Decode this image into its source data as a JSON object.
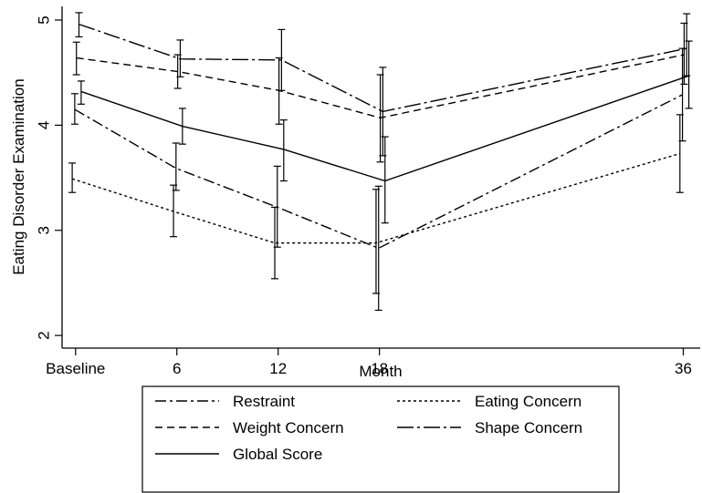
{
  "chart_data": {
    "type": "line",
    "xlabel": "Month",
    "ylabel": "Eating Disorder Examination",
    "x_tick_labels": [
      "Baseline",
      "6",
      "12",
      "18",
      "36"
    ],
    "x_tick_values": [
      0,
      6,
      12,
      18,
      36
    ],
    "y_ticks": [
      "2",
      "3",
      "4",
      "5"
    ],
    "ylim": [
      1.88,
      5.13
    ],
    "xlim": [
      -0.8,
      37
    ],
    "grid": false,
    "legend_position": "bottom",
    "series": [
      {
        "name": "Restraint",
        "style": "dashdot",
        "color": "#000000",
        "x": [
          0,
          6,
          12,
          18,
          36
        ],
        "values": [
          4.15,
          3.59,
          3.22,
          2.83,
          4.29
        ],
        "ci_low": [
          4.01,
          3.38,
          2.84,
          2.24,
          3.85
        ],
        "ci_high": [
          4.3,
          3.83,
          3.61,
          3.42,
          4.73
        ]
      },
      {
        "name": "Eating Concern",
        "style": "dotted",
        "color": "#000000",
        "x": [
          0,
          6,
          12,
          18,
          36
        ],
        "values": [
          3.49,
          3.18,
          2.88,
          2.88,
          3.73
        ],
        "ci_low": [
          3.36,
          2.94,
          2.54,
          2.4,
          3.36
        ],
        "ci_high": [
          3.64,
          3.43,
          3.22,
          3.39,
          4.1
        ]
      },
      {
        "name": "Weight Concern",
        "style": "dashed",
        "color": "#000000",
        "x": [
          0,
          6,
          12,
          18,
          36
        ],
        "values": [
          4.64,
          4.51,
          4.33,
          4.07,
          4.67
        ],
        "ci_low": [
          4.48,
          4.35,
          4.01,
          3.65,
          4.39
        ],
        "ci_high": [
          4.79,
          4.67,
          4.64,
          4.48,
          4.97
        ]
      },
      {
        "name": "Shape Concern",
        "style": "longdashdot",
        "color": "#000000",
        "x": [
          0,
          6,
          12,
          18,
          36
        ],
        "values": [
          4.96,
          4.63,
          4.62,
          4.13,
          4.73
        ],
        "ci_low": [
          4.84,
          4.46,
          4.33,
          3.71,
          4.47
        ],
        "ci_high": [
          5.07,
          4.81,
          4.91,
          4.55,
          5.06
        ]
      },
      {
        "name": "Global Score",
        "style": "solid",
        "color": "#000000",
        "x": [
          0,
          6,
          12,
          18,
          36
        ],
        "values": [
          4.32,
          3.99,
          3.77,
          3.47,
          4.47
        ],
        "ci_low": [
          4.2,
          3.82,
          3.47,
          3.07,
          4.16
        ],
        "ci_high": [
          4.42,
          4.16,
          4.05,
          3.89,
          4.8
        ]
      }
    ]
  }
}
